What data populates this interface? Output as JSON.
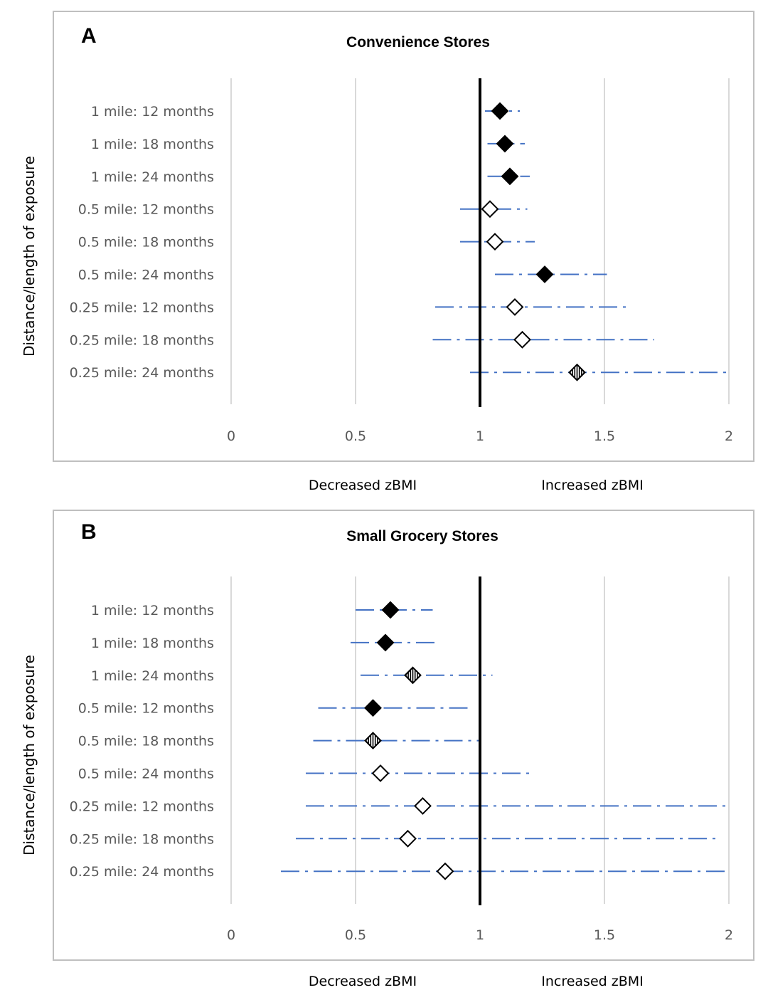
{
  "chart_data": [
    {
      "type": "scatter",
      "panel_label": "A",
      "title": "Convenience Stores",
      "ylabel": "Distance/length of exposure",
      "xlim": [
        0,
        2
      ],
      "xticks": [
        "0",
        "0.5",
        "1",
        "1.5",
        "2"
      ],
      "reference_line_x": 1,
      "grid": true,
      "below_left_label": "Decreased zBMI",
      "below_right_label": "Increased zBMI",
      "categories": [
        "1 mile: 12 months",
        "1 mile: 18 months",
        "1 mile: 24 months",
        "0.5 mile: 12 months",
        "0.5 mile: 18 months",
        "0.5 mile: 24 months",
        "0.25 mile: 12 months",
        "0.25 mile: 18 months",
        "0.25 mile: 24 months"
      ],
      "estimates": [
        1.08,
        1.1,
        1.12,
        1.04,
        1.06,
        1.26,
        1.14,
        1.17,
        1.39
      ],
      "ci_lower": [
        1.02,
        1.03,
        1.03,
        0.92,
        0.92,
        1.06,
        0.82,
        0.81,
        0.96
      ],
      "ci_upper": [
        1.16,
        1.18,
        1.2,
        1.19,
        1.22,
        1.51,
        1.6,
        1.7,
        2.0
      ],
      "marker_style": [
        "filled",
        "filled",
        "filled",
        "open",
        "open",
        "filled",
        "open",
        "open",
        "striped"
      ]
    },
    {
      "type": "scatter",
      "panel_label": "B",
      "title": "Small Grocery Stores",
      "ylabel": "Distance/length of exposure",
      "xlim": [
        0,
        2
      ],
      "xticks": [
        "0",
        "0.5",
        "1",
        "1.5",
        "2"
      ],
      "reference_line_x": 1,
      "grid": true,
      "below_left_label": "Decreased zBMI",
      "below_right_label": "Increased zBMI",
      "categories": [
        "1 mile: 12 months",
        "1 mile: 18 months",
        "1 mile: 24 months",
        "0.5 mile: 12 months",
        "0.5 mile: 18 months",
        "0.5 mile: 24 months",
        "0.25 mile: 12 months",
        "0.25 mile: 18 months",
        "0.25 mile: 24 months"
      ],
      "estimates": [
        0.64,
        0.62,
        0.73,
        0.57,
        0.57,
        0.6,
        0.77,
        0.71,
        0.86
      ],
      "ci_lower": [
        0.5,
        0.48,
        0.52,
        0.35,
        0.33,
        0.3,
        0.3,
        0.26,
        0.2
      ],
      "ci_upper": [
        0.81,
        0.82,
        1.05,
        0.95,
        1.0,
        1.21,
        2.0,
        1.95,
        2.0
      ],
      "marker_style": [
        "filled",
        "filled",
        "striped",
        "filled",
        "striped",
        "open",
        "open",
        "open",
        "open"
      ]
    }
  ],
  "colors": {
    "ci_line": "#4472C4",
    "reference_line": "#000000",
    "gridline": "#d9d9d9",
    "frame": "#bfbfbf",
    "marker": "#000000",
    "axis_text": "#595959"
  }
}
